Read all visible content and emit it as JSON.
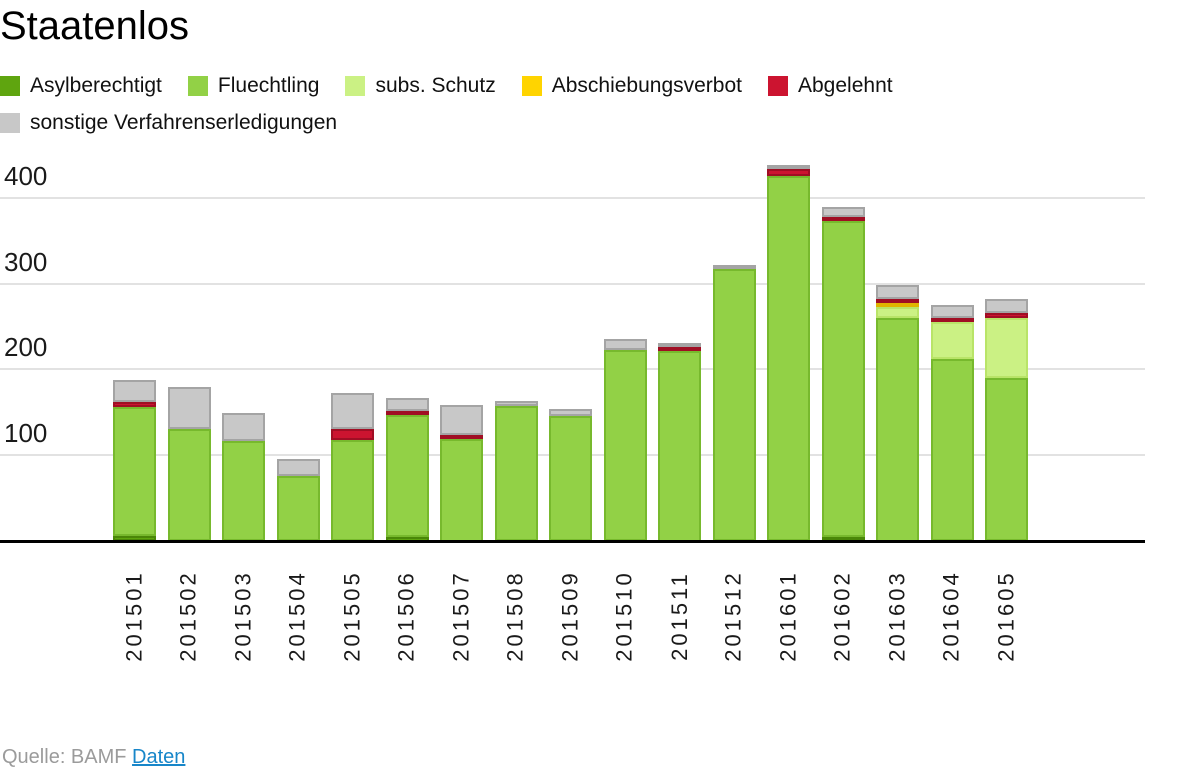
{
  "title": "Staatenlos",
  "source": {
    "prefix": "Quelle: BAMF ",
    "link_label": "Daten"
  },
  "chart_data": {
    "type": "bar",
    "stacked": true,
    "title": "Staatenlos",
    "xlabel": "",
    "ylabel": "",
    "ylim": [
      0,
      450
    ],
    "y_ticks": [
      100,
      200,
      300,
      400
    ],
    "grid": true,
    "legend_position": "top",
    "categories": [
      "201501",
      "201502",
      "201503",
      "201504",
      "201505",
      "201506",
      "201507",
      "201508",
      "201509",
      "201510",
      "201511",
      "201512",
      "201601",
      "201602",
      "201603",
      "201604",
      "201605"
    ],
    "series": [
      {
        "name": "Asylberechtigt",
        "color": "#5fa50f",
        "border": "#4a8708",
        "values": [
          6,
          0,
          0,
          0,
          0,
          6,
          0,
          0,
          0,
          0,
          0,
          0,
          0,
          5,
          0,
          0,
          0
        ]
      },
      {
        "name": "Fluechtling",
        "color": "#92d146",
        "border": "#77b92d",
        "values": [
          150,
          131,
          117,
          76,
          118,
          142,
          120,
          157,
          146,
          223,
          222,
          317,
          425,
          368,
          260,
          212,
          190
        ]
      },
      {
        "name": "subs. Schutz",
        "color": "#cbf184",
        "border": "#b9e468",
        "values": [
          0,
          0,
          0,
          0,
          0,
          0,
          0,
          0,
          0,
          0,
          0,
          0,
          0,
          0,
          13,
          43,
          70
        ]
      },
      {
        "name": "Abschiebungsverbot",
        "color": "#ffd400",
        "border": "#e0b400",
        "values": [
          0,
          0,
          0,
          0,
          0,
          0,
          0,
          0,
          0,
          0,
          0,
          0,
          0,
          0,
          5,
          0,
          0
        ]
      },
      {
        "name": "Abgelehnt",
        "color": "#cc1430",
        "border": "#a00e24",
        "values": [
          6,
          0,
          0,
          0,
          12,
          3,
          4,
          0,
          0,
          0,
          4,
          0,
          8,
          5,
          4,
          5,
          6
        ]
      },
      {
        "name": "sonstige Verfahrenserledigungen",
        "color": "#c8c8c8",
        "border": "#a4a4a4",
        "values": [
          26,
          48,
          32,
          19,
          42,
          16,
          34,
          6,
          8,
          12,
          5,
          5,
          5,
          11,
          16,
          15,
          16
        ]
      }
    ],
    "totals": [
      188,
      179,
      149,
      95,
      172,
      167,
      158,
      163,
      154,
      235,
      231,
      322,
      438,
      389,
      298,
      275,
      282
    ]
  }
}
